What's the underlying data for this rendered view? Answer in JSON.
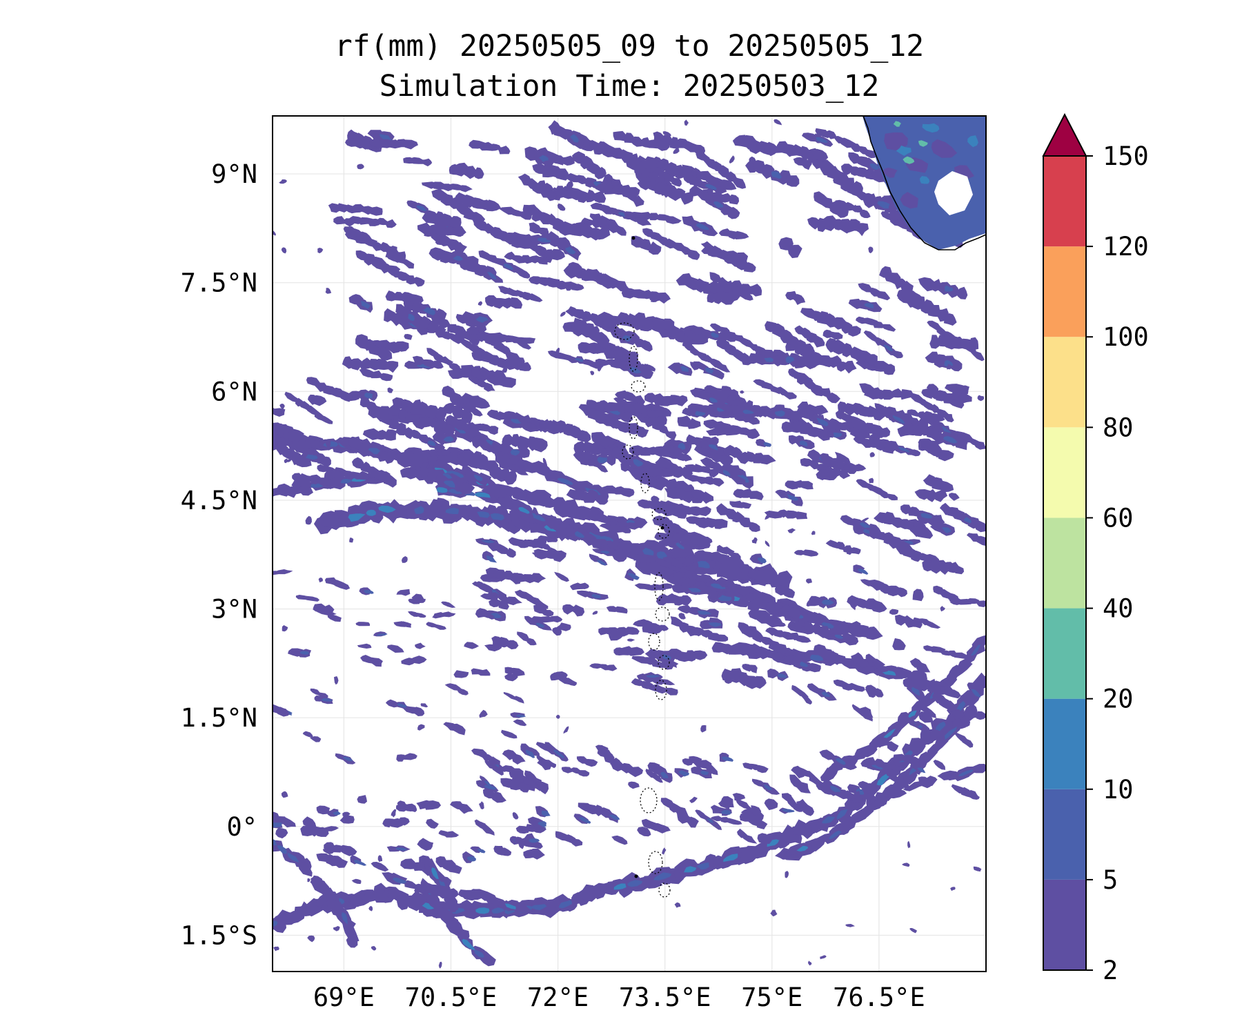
{
  "title": {
    "line1": "rf(mm) 20250505_09 to 20250505_12",
    "line2": "Simulation Time: 20250503_12"
  },
  "map": {
    "lon_range": [
      68,
      78
    ],
    "lat_range": [
      -2,
      9.8
    ],
    "lon_ticks": [
      {
        "value": 69,
        "label": "69°E"
      },
      {
        "value": 70.5,
        "label": "70.5°E"
      },
      {
        "value": 72,
        "label": "72°E"
      },
      {
        "value": 73.5,
        "label": "73.5°E"
      },
      {
        "value": 75,
        "label": "75°E"
      },
      {
        "value": 76.5,
        "label": "76.5°E"
      }
    ],
    "lat_ticks": [
      {
        "value": 9,
        "label": "9°N"
      },
      {
        "value": 7.5,
        "label": "7.5°N"
      },
      {
        "value": 6,
        "label": "6°N"
      },
      {
        "value": 4.5,
        "label": "4.5°N"
      },
      {
        "value": 3,
        "label": "3°N"
      },
      {
        "value": 1.5,
        "label": "1.5°N"
      },
      {
        "value": 0,
        "label": "0°"
      },
      {
        "value": -1.5,
        "label": "1.5°S"
      }
    ],
    "gridlines": true,
    "land": "India (southern tip) top-right; Maldives atoll outlines along 73.5°E"
  },
  "colorbar": {
    "levels": [
      2,
      5,
      10,
      20,
      40,
      60,
      80,
      100,
      120,
      150
    ],
    "colors": [
      "#5e4fa2",
      "#4a61ad",
      "#3b82bd",
      "#62bda9",
      "#bde3a0",
      "#f4fbae",
      "#fce08a",
      "#faa05b",
      "#d7404e",
      "#9e0142"
    ],
    "extend": "max",
    "placement": "right"
  },
  "rain_colors": {
    "low": "#5e4fa2",
    "mid": "#4a61ad",
    "high": "#3b82bd",
    "peak": "#62bda9"
  }
}
